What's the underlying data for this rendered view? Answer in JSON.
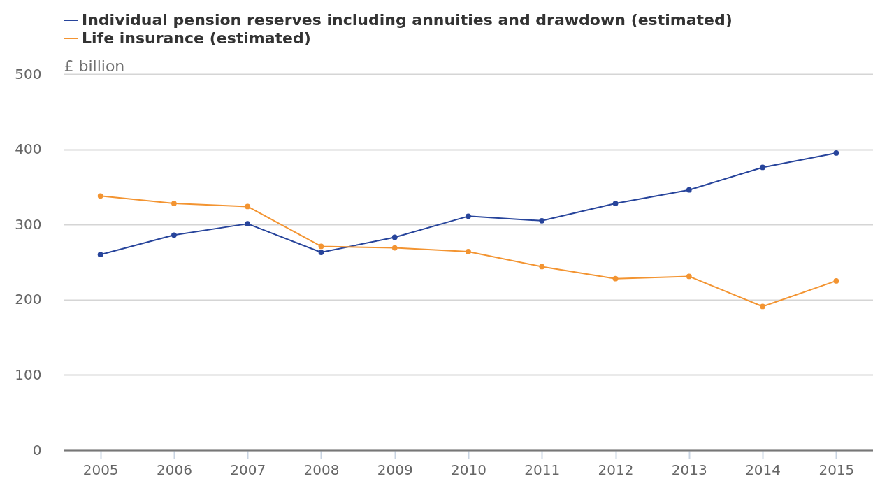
{
  "chart_data": {
    "type": "line",
    "ylabel": "£ billion",
    "categories": [
      "2005",
      "2006",
      "2007",
      "2008",
      "2009",
      "2010",
      "2011",
      "2012",
      "2013",
      "2014",
      "2015"
    ],
    "series": [
      {
        "name": "Individual pension reserves including annuities and drawdown (estimated)",
        "color": "#27449b",
        "values": [
          260,
          286,
          301,
          263,
          283,
          311,
          305,
          328,
          346,
          376,
          395
        ]
      },
      {
        "name": "Life insurance (estimated)",
        "color": "#f39431",
        "values": [
          338,
          328,
          324,
          271,
          269,
          264,
          244,
          228,
          231,
          191,
          225
        ]
      }
    ],
    "ylim": [
      0,
      500
    ],
    "yticks": [
      0,
      100,
      200,
      300,
      400,
      500
    ],
    "grid": "y",
    "legend": "top left",
    "marker": "circle",
    "line_style": "solid"
  }
}
